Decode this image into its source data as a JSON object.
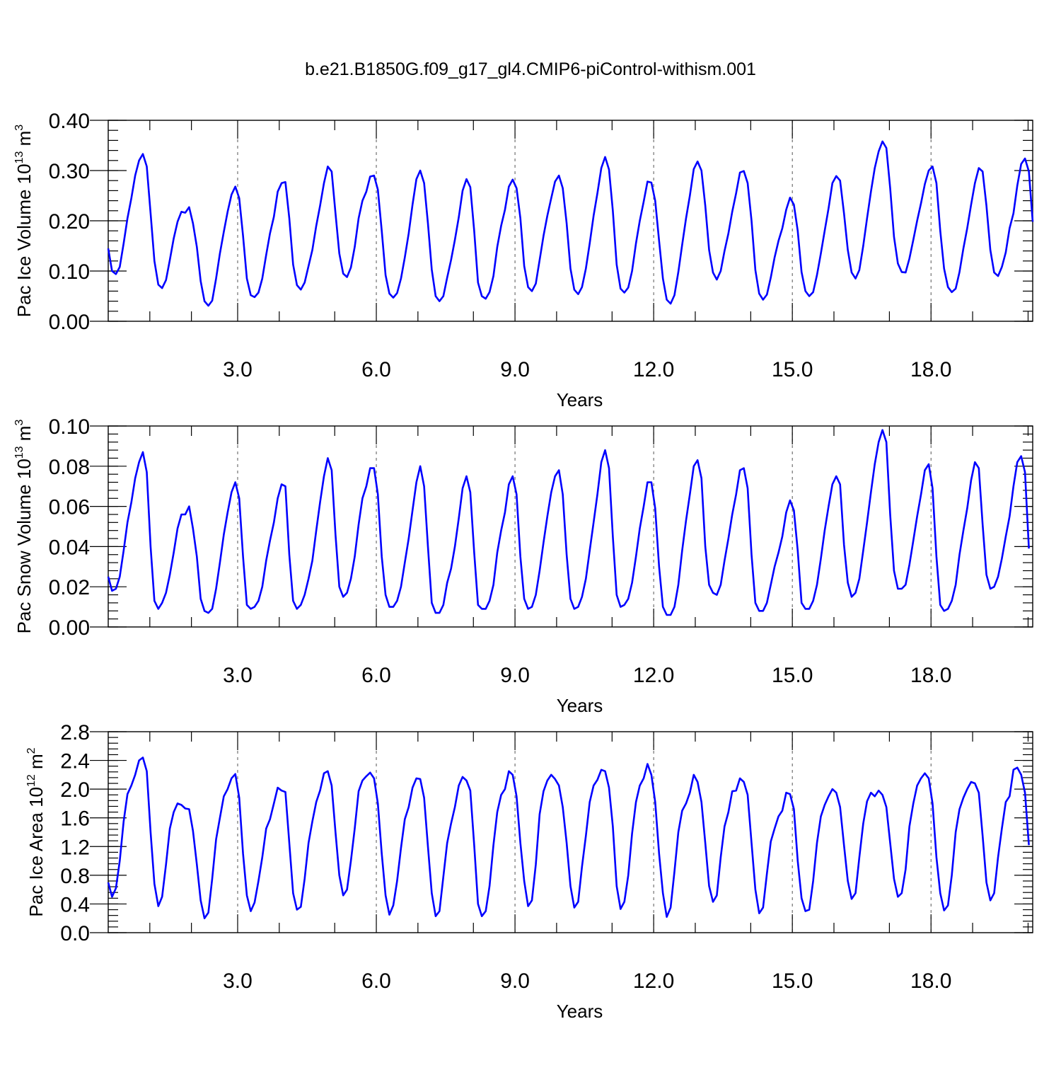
{
  "title": "b.e21.B1850G.f09_g17_gl4.CMIP6-piControl-withism.001",
  "chart_data": [
    {
      "type": "line",
      "ylabel": {
        "text": "Pac Ice Volume 10",
        "sup": "13",
        "unit": " m",
        "unit_sup": "3"
      },
      "xlabel": "Years",
      "xlim": [
        0.2,
        20.2
      ],
      "ylim": [
        0,
        0.4
      ],
      "yticks": [
        0.0,
        0.1,
        0.2,
        0.3,
        0.4
      ],
      "ytick_labels": [
        "0.00",
        "0.10",
        "0.20",
        "0.30",
        "0.40"
      ],
      "yminor_step": 0.02,
      "xticks": [
        3,
        6,
        9,
        12,
        15,
        18
      ],
      "xtick_labels": [
        "3.0",
        "6.0",
        "9.0",
        "12.0",
        "15.0",
        "18.0"
      ],
      "xminor_ticks": [
        1.1,
        2.0,
        3.9,
        5.1,
        6.9,
        8.1,
        9.9,
        11.1,
        12.9,
        14.1,
        15.9,
        17.1,
        18.9,
        20.1
      ],
      "grid": "vertical-dashed",
      "series": [
        {
          "color": "#0000ff",
          "x0": 0.2,
          "dx": 0.0833333,
          "values": [
            0.145,
            0.1,
            0.094,
            0.108,
            0.155,
            0.205,
            0.245,
            0.29,
            0.32,
            0.333,
            0.308,
            0.215,
            0.12,
            0.073,
            0.066,
            0.082,
            0.122,
            0.165,
            0.198,
            0.218,
            0.216,
            0.227,
            0.195,
            0.148,
            0.08,
            0.04,
            0.031,
            0.041,
            0.085,
            0.135,
            0.178,
            0.218,
            0.252,
            0.268,
            0.245,
            0.17,
            0.085,
            0.052,
            0.048,
            0.057,
            0.085,
            0.132,
            0.175,
            0.208,
            0.258,
            0.275,
            0.277,
            0.205,
            0.113,
            0.072,
            0.063,
            0.077,
            0.11,
            0.142,
            0.19,
            0.23,
            0.275,
            0.308,
            0.298,
            0.215,
            0.135,
            0.095,
            0.088,
            0.107,
            0.148,
            0.205,
            0.24,
            0.258,
            0.288,
            0.29,
            0.262,
            0.18,
            0.092,
            0.055,
            0.047,
            0.056,
            0.085,
            0.127,
            0.175,
            0.232,
            0.283,
            0.3,
            0.275,
            0.195,
            0.103,
            0.05,
            0.04,
            0.05,
            0.087,
            0.122,
            0.162,
            0.207,
            0.26,
            0.283,
            0.267,
            0.18,
            0.077,
            0.05,
            0.045,
            0.058,
            0.09,
            0.148,
            0.19,
            0.222,
            0.268,
            0.282,
            0.265,
            0.205,
            0.11,
            0.068,
            0.06,
            0.075,
            0.122,
            0.17,
            0.21,
            0.245,
            0.278,
            0.29,
            0.265,
            0.195,
            0.105,
            0.063,
            0.054,
            0.068,
            0.105,
            0.155,
            0.21,
            0.255,
            0.305,
            0.327,
            0.302,
            0.22,
            0.113,
            0.065,
            0.057,
            0.067,
            0.1,
            0.155,
            0.2,
            0.238,
            0.278,
            0.276,
            0.24,
            0.16,
            0.085,
            0.043,
            0.035,
            0.052,
            0.098,
            0.152,
            0.205,
            0.25,
            0.303,
            0.318,
            0.3,
            0.23,
            0.142,
            0.097,
            0.083,
            0.1,
            0.14,
            0.175,
            0.218,
            0.255,
            0.296,
            0.299,
            0.275,
            0.2,
            0.102,
            0.055,
            0.043,
            0.053,
            0.087,
            0.127,
            0.16,
            0.185,
            0.222,
            0.246,
            0.232,
            0.18,
            0.098,
            0.06,
            0.05,
            0.058,
            0.092,
            0.135,
            0.18,
            0.225,
            0.275,
            0.289,
            0.28,
            0.215,
            0.142,
            0.097,
            0.085,
            0.102,
            0.15,
            0.205,
            0.258,
            0.305,
            0.338,
            0.358,
            0.345,
            0.265,
            0.168,
            0.115,
            0.098,
            0.097,
            0.125,
            0.162,
            0.2,
            0.235,
            0.273,
            0.3,
            0.308,
            0.275,
            0.18,
            0.105,
            0.068,
            0.058,
            0.065,
            0.098,
            0.145,
            0.185,
            0.232,
            0.275,
            0.305,
            0.298,
            0.23,
            0.142,
            0.097,
            0.09,
            0.108,
            0.137,
            0.185,
            0.215,
            0.27,
            0.313,
            0.324,
            0.298,
            0.198
          ]
        }
      ]
    },
    {
      "type": "line",
      "ylabel": {
        "text": "Pac Snow Volume 10",
        "sup": "13",
        "unit": " m",
        "unit_sup": "3"
      },
      "xlabel": "Years",
      "xlim": [
        0.2,
        20.2
      ],
      "ylim": [
        0,
        0.1
      ],
      "yticks": [
        0.0,
        0.02,
        0.04,
        0.06,
        0.08,
        0.1
      ],
      "ytick_labels": [
        "0.00",
        "0.02",
        "0.04",
        "0.06",
        "0.08",
        "0.10"
      ],
      "yminor_step": 0.004,
      "xticks": [
        3,
        6,
        9,
        12,
        15,
        18
      ],
      "xtick_labels": [
        "3.0",
        "6.0",
        "9.0",
        "12.0",
        "15.0",
        "18.0"
      ],
      "xminor_ticks": [
        1.1,
        2.0,
        3.9,
        5.1,
        6.9,
        8.1,
        9.9,
        11.1,
        12.9,
        14.1,
        15.9,
        17.1,
        18.9,
        20.1
      ],
      "grid": "vertical-dashed",
      "series": [
        {
          "color": "#0000ff",
          "x0": 0.2,
          "dx": 0.0833333,
          "values": [
            0.025,
            0.018,
            0.019,
            0.025,
            0.038,
            0.052,
            0.062,
            0.074,
            0.082,
            0.087,
            0.077,
            0.04,
            0.013,
            0.009,
            0.012,
            0.017,
            0.026,
            0.037,
            0.049,
            0.056,
            0.056,
            0.06,
            0.049,
            0.035,
            0.014,
            0.008,
            0.007,
            0.009,
            0.019,
            0.032,
            0.046,
            0.057,
            0.067,
            0.072,
            0.064,
            0.035,
            0.011,
            0.009,
            0.01,
            0.013,
            0.02,
            0.033,
            0.043,
            0.052,
            0.064,
            0.071,
            0.07,
            0.036,
            0.013,
            0.009,
            0.011,
            0.016,
            0.024,
            0.033,
            0.048,
            0.062,
            0.075,
            0.084,
            0.078,
            0.046,
            0.02,
            0.015,
            0.017,
            0.024,
            0.035,
            0.051,
            0.064,
            0.07,
            0.079,
            0.079,
            0.066,
            0.035,
            0.016,
            0.01,
            0.01,
            0.013,
            0.02,
            0.032,
            0.044,
            0.058,
            0.072,
            0.08,
            0.07,
            0.04,
            0.012,
            0.007,
            0.007,
            0.011,
            0.022,
            0.029,
            0.04,
            0.054,
            0.069,
            0.075,
            0.067,
            0.037,
            0.011,
            0.009,
            0.009,
            0.013,
            0.021,
            0.037,
            0.048,
            0.057,
            0.071,
            0.075,
            0.066,
            0.035,
            0.014,
            0.009,
            0.01,
            0.016,
            0.028,
            0.042,
            0.055,
            0.067,
            0.075,
            0.078,
            0.066,
            0.036,
            0.014,
            0.009,
            0.01,
            0.015,
            0.024,
            0.038,
            0.052,
            0.066,
            0.082,
            0.088,
            0.079,
            0.045,
            0.016,
            0.01,
            0.011,
            0.014,
            0.022,
            0.035,
            0.049,
            0.06,
            0.072,
            0.072,
            0.059,
            0.03,
            0.01,
            0.006,
            0.006,
            0.01,
            0.021,
            0.038,
            0.053,
            0.066,
            0.08,
            0.083,
            0.074,
            0.04,
            0.021,
            0.017,
            0.016,
            0.021,
            0.033,
            0.044,
            0.056,
            0.066,
            0.078,
            0.079,
            0.069,
            0.036,
            0.012,
            0.008,
            0.008,
            0.012,
            0.021,
            0.03,
            0.037,
            0.045,
            0.057,
            0.063,
            0.058,
            0.038,
            0.012,
            0.009,
            0.009,
            0.013,
            0.021,
            0.034,
            0.048,
            0.06,
            0.071,
            0.075,
            0.071,
            0.041,
            0.022,
            0.015,
            0.017,
            0.024,
            0.038,
            0.052,
            0.067,
            0.081,
            0.092,
            0.098,
            0.092,
            0.056,
            0.028,
            0.019,
            0.019,
            0.021,
            0.031,
            0.043,
            0.055,
            0.066,
            0.078,
            0.081,
            0.069,
            0.035,
            0.011,
            0.008,
            0.009,
            0.013,
            0.021,
            0.036,
            0.048,
            0.059,
            0.073,
            0.082,
            0.079,
            0.051,
            0.026,
            0.019,
            0.02,
            0.025,
            0.034,
            0.045,
            0.055,
            0.07,
            0.082,
            0.085,
            0.077,
            0.039
          ]
        }
      ]
    },
    {
      "type": "line",
      "ylabel": {
        "text": "Pac Ice Area 10",
        "sup": "12",
        "unit": " m",
        "unit_sup": "2"
      },
      "xlabel": "Years",
      "xlim": [
        0.2,
        20.2
      ],
      "ylim": [
        0,
        2.8
      ],
      "yticks": [
        0.0,
        0.4,
        0.8,
        1.2,
        1.6,
        2.0,
        2.4,
        2.8
      ],
      "ytick_labels": [
        "0.0",
        "0.4",
        "0.8",
        "1.2",
        "1.6",
        "2.0",
        "2.4",
        "2.8"
      ],
      "yminor_step": 0.08,
      "xticks": [
        3,
        6,
        9,
        12,
        15,
        18
      ],
      "xtick_labels": [
        "3.0",
        "6.0",
        "9.0",
        "12.0",
        "15.0",
        "18.0"
      ],
      "xminor_ticks": [
        1.1,
        2.0,
        3.9,
        5.1,
        6.9,
        8.1,
        9.9,
        11.1,
        12.9,
        14.1,
        15.9,
        17.1,
        18.9,
        20.1
      ],
      "grid": "vertical-dashed",
      "series": [
        {
          "color": "#0000ff",
          "x0": 0.2,
          "dx": 0.0833333,
          "values": [
            0.7,
            0.5,
            0.62,
            1.0,
            1.55,
            1.93,
            2.05,
            2.2,
            2.4,
            2.44,
            2.25,
            1.4,
            0.68,
            0.37,
            0.5,
            0.95,
            1.45,
            1.68,
            1.8,
            1.78,
            1.73,
            1.72,
            1.42,
            0.95,
            0.45,
            0.2,
            0.28,
            0.75,
            1.3,
            1.6,
            1.9,
            2.0,
            2.15,
            2.21,
            1.88,
            1.1,
            0.52,
            0.3,
            0.42,
            0.72,
            1.05,
            1.45,
            1.58,
            1.8,
            2.02,
            1.98,
            1.96,
            1.25,
            0.55,
            0.32,
            0.36,
            0.75,
            1.25,
            1.55,
            1.82,
            1.98,
            2.22,
            2.25,
            2.05,
            1.4,
            0.8,
            0.52,
            0.6,
            1.0,
            1.45,
            1.97,
            2.12,
            2.18,
            2.23,
            2.15,
            1.8,
            1.1,
            0.52,
            0.25,
            0.38,
            0.72,
            1.18,
            1.58,
            1.75,
            2.02,
            2.15,
            2.14,
            1.88,
            1.2,
            0.55,
            0.23,
            0.3,
            0.78,
            1.25,
            1.52,
            1.75,
            2.05,
            2.17,
            2.12,
            1.98,
            1.22,
            0.4,
            0.23,
            0.3,
            0.65,
            1.22,
            1.68,
            1.92,
            2.0,
            2.25,
            2.2,
            1.9,
            1.25,
            0.72,
            0.37,
            0.45,
            0.95,
            1.65,
            1.97,
            2.12,
            2.2,
            2.14,
            2.05,
            1.75,
            1.25,
            0.65,
            0.35,
            0.43,
            0.92,
            1.35,
            1.82,
            2.05,
            2.13,
            2.27,
            2.25,
            2.02,
            1.48,
            0.65,
            0.33,
            0.43,
            0.8,
            1.38,
            1.82,
            2.05,
            2.15,
            2.35,
            2.2,
            1.82,
            1.1,
            0.55,
            0.22,
            0.35,
            0.85,
            1.4,
            1.7,
            1.8,
            1.95,
            2.2,
            2.1,
            1.82,
            1.25,
            0.65,
            0.43,
            0.52,
            1.05,
            1.48,
            1.68,
            1.97,
            1.98,
            2.15,
            2.1,
            1.92,
            1.25,
            0.6,
            0.27,
            0.35,
            0.82,
            1.27,
            1.45,
            1.62,
            1.7,
            1.95,
            1.93,
            1.72,
            1.0,
            0.48,
            0.3,
            0.32,
            0.72,
            1.25,
            1.62,
            1.78,
            1.9,
            2.0,
            1.95,
            1.75,
            1.22,
            0.72,
            0.47,
            0.55,
            1.05,
            1.52,
            1.83,
            1.95,
            1.9,
            1.98,
            1.92,
            1.75,
            1.25,
            0.75,
            0.5,
            0.55,
            0.88,
            1.48,
            1.8,
            2.05,
            2.15,
            2.22,
            2.15,
            1.8,
            1.05,
            0.55,
            0.31,
            0.38,
            0.8,
            1.4,
            1.72,
            1.88,
            2.0,
            2.1,
            2.08,
            1.95,
            1.35,
            0.7,
            0.45,
            0.55,
            1.05,
            1.45,
            1.82,
            1.9,
            2.27,
            2.3,
            2.2,
            1.95,
            1.22
          ]
        }
      ]
    }
  ]
}
